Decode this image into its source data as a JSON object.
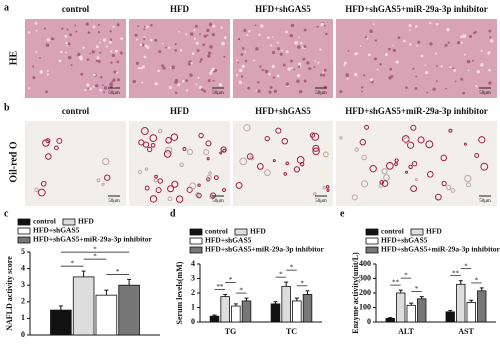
{
  "panel_labels": [
    "a",
    "b",
    "c",
    "d",
    "e"
  ],
  "image_columns": [
    "control",
    "HFD",
    "HFD+shGAS5",
    "HFD+shGAS5+miR-29a-3p inhibitor"
  ],
  "row_labels": [
    "HE",
    "Oil-red O"
  ],
  "scale_bar": "50μm",
  "chart_data": [
    {
      "type": "bar",
      "y_label": "NAFLD activity score",
      "categories": [
        null
      ],
      "series": [
        {
          "name": "control",
          "color": "#111111",
          "values": [
            1.5
          ],
          "errors": [
            0.25
          ]
        },
        {
          "name": "HFD",
          "color": "#dddddd",
          "values": [
            3.5
          ],
          "errors": [
            0.35
          ]
        },
        {
          "name": "HFD+shGAS5",
          "color": "#ffffff",
          "values": [
            2.4
          ],
          "errors": [
            0.3
          ]
        },
        {
          "name": "HFD+shGAS5+miR-29a-3p inhibitor",
          "color": "#777777",
          "values": [
            3.0
          ],
          "errors": [
            0.35
          ]
        }
      ],
      "ylim": [
        0,
        5
      ],
      "yticks": [
        0,
        1,
        2,
        3,
        4,
        5
      ],
      "annotations": [
        "*",
        "*",
        "*",
        "*"
      ]
    },
    {
      "type": "bar",
      "y_label": "Serum levels(mM)",
      "categories": [
        "TG",
        "TC"
      ],
      "series": [
        {
          "name": "control",
          "color": "#111111",
          "values": [
            0.4,
            1.25
          ],
          "errors": [
            0.08,
            0.15
          ]
        },
        {
          "name": "HFD",
          "color": "#dddddd",
          "values": [
            1.75,
            2.45
          ],
          "errors": [
            0.15,
            0.3
          ]
        },
        {
          "name": "HFD+shGAS5",
          "color": "#ffffff",
          "values": [
            1.1,
            1.45
          ],
          "errors": [
            0.15,
            0.2
          ]
        },
        {
          "name": "HFD+shGAS5+miR-29a-3p inhibitor",
          "color": "#777777",
          "values": [
            1.45,
            1.9
          ],
          "errors": [
            0.2,
            0.25
          ]
        }
      ],
      "ylim": [
        0,
        4
      ],
      "yticks": [
        0,
        1,
        2,
        3,
        4
      ],
      "annotations": [
        "**",
        "*",
        "*",
        "*",
        "*",
        "*"
      ]
    },
    {
      "type": "bar",
      "y_label": "Enzyme activity(unit/L)",
      "categories": [
        "ALT",
        "AST"
      ],
      "series": [
        {
          "name": "control",
          "color": "#111111",
          "values": [
            25,
            70
          ],
          "errors": [
            5,
            10
          ]
        },
        {
          "name": "HFD",
          "color": "#dddddd",
          "values": [
            200,
            260
          ],
          "errors": [
            20,
            25
          ]
        },
        {
          "name": "HFD+shGAS5",
          "color": "#ffffff",
          "values": [
            115,
            135
          ],
          "errors": [
            15,
            15
          ]
        },
        {
          "name": "HFD+shGAS5+miR-29a-3p inhibitor",
          "color": "#777777",
          "values": [
            160,
            215
          ],
          "errors": [
            15,
            20
          ]
        }
      ],
      "ylim": [
        0,
        400
      ],
      "yticks": [
        0,
        100,
        200,
        300,
        400
      ],
      "annotations": [
        "**",
        "*",
        "*",
        "**",
        "*",
        "*"
      ]
    }
  ]
}
